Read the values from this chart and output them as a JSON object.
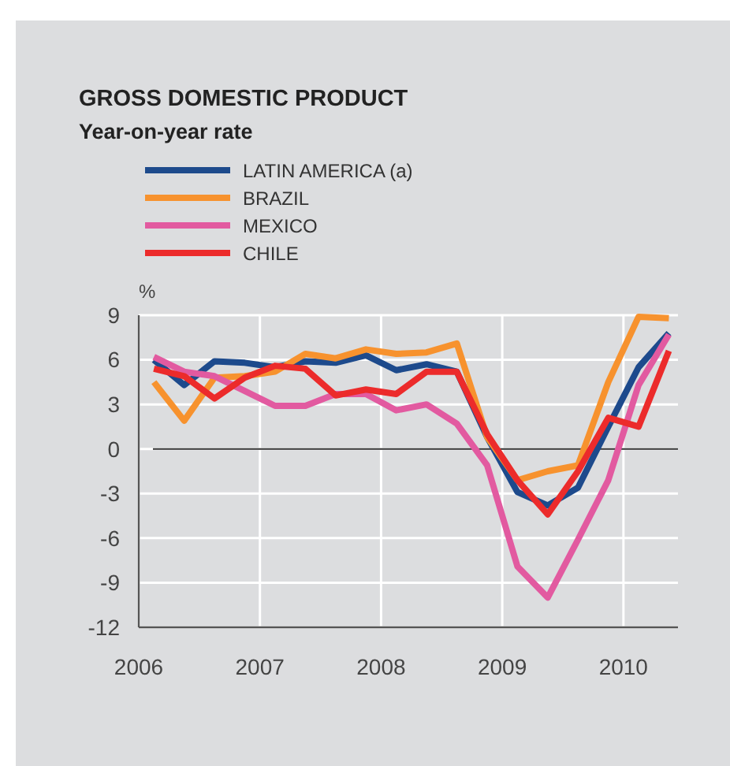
{
  "chart_data": {
    "type": "line",
    "title": "GROSS DOMESTIC PRODUCT",
    "subtitle": "Year-on-year rate",
    "ylabel": "%",
    "x": [
      2006.125,
      2006.375,
      2006.625,
      2006.875,
      2007.125,
      2007.375,
      2007.625,
      2007.875,
      2008.125,
      2008.375,
      2008.625,
      2008.875,
      2009.125,
      2009.375,
      2009.625,
      2009.875,
      2010.125,
      2010.375
    ],
    "series": [
      {
        "name": "LATIN AMERICA (a)",
        "color": "#1d4a8c",
        "values": [
          6.0,
          4.3,
          5.9,
          5.8,
          5.5,
          5.9,
          5.8,
          6.3,
          5.3,
          5.7,
          5.2,
          0.8,
          -2.9,
          -3.8,
          -2.6,
          1.5,
          5.5,
          7.8
        ]
      },
      {
        "name": "BRAZIL",
        "color": "#f7922e",
        "values": [
          4.5,
          1.9,
          4.8,
          4.9,
          5.2,
          6.4,
          6.1,
          6.7,
          6.4,
          6.5,
          7.1,
          0.8,
          -2.1,
          -1.5,
          -1.1,
          4.5,
          8.9,
          8.8
        ]
      },
      {
        "name": "MEXICO",
        "color": "#e25aa0",
        "values": [
          6.2,
          5.2,
          4.9,
          3.9,
          2.9,
          2.9,
          3.7,
          3.7,
          2.6,
          3.0,
          1.7,
          -1.1,
          -7.9,
          -10.0,
          -6.1,
          -2.1,
          4.3,
          7.7
        ]
      },
      {
        "name": "CHILE",
        "color": "#ec2b2b",
        "values": [
          5.4,
          4.9,
          3.4,
          4.8,
          5.6,
          5.4,
          3.6,
          4.0,
          3.7,
          5.2,
          5.2,
          1.0,
          -2.1,
          -4.4,
          -1.5,
          2.1,
          1.5,
          6.6
        ]
      }
    ],
    "xlim": [
      2006,
      2010.45
    ],
    "xticks": [
      2006,
      2007,
      2008,
      2009,
      2010
    ],
    "ylim": [
      -12,
      9
    ],
    "yticks": [
      -12,
      -9,
      -6,
      -3,
      0,
      3,
      6,
      9
    ],
    "ref_lines": [
      {
        "axis": "y",
        "value": 0,
        "color": "#333333"
      }
    ],
    "grid": true,
    "legend": "top left",
    "marker": "none",
    "line_style": "solid"
  }
}
